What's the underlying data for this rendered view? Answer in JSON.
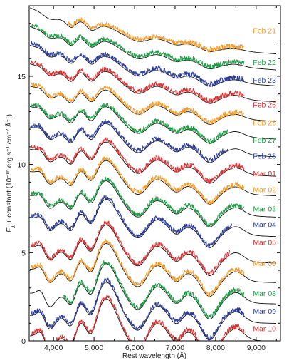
{
  "chart_data": {
    "type": "line",
    "xlabel": "Rest wavelength (Å)",
    "ylabel_parts": {
      "f": "F",
      "sub": "λ",
      "mid": " + constant (10",
      "exp1": "−16",
      "mid2": " erg s",
      "exp2": "−1",
      "mid3": " cm",
      "exp3": "−2",
      "mid4": " Å",
      "exp4": "−1",
      "end": ")"
    },
    "xlim": [
      3400,
      9600
    ],
    "ylim": [
      0,
      19.0
    ],
    "x_ticks": [
      4000,
      5000,
      6000,
      7000,
      8000,
      9000
    ],
    "x_tick_labels": [
      "4,000",
      "5,000",
      "6,000",
      "7,000",
      "8,000",
      "9,000"
    ],
    "y_ticks": [
      0,
      5,
      10,
      15
    ],
    "y_tick_labels": [
      "0",
      "5",
      "10",
      "15"
    ],
    "grid": false,
    "legend": "none",
    "series": [
      {
        "name": "Feb 21",
        "color": "#f39a2a",
        "offset": 16.4,
        "x_start": 4350,
        "x_end": 8700,
        "seed": 1,
        "label_y": 17.6
      },
      {
        "name": "Feb 22",
        "color": "#1f9a45",
        "offset": 15.5,
        "x_start": 3450,
        "x_end": 8700,
        "seed": 2,
        "label_y": 15.8
      },
      {
        "name": "Feb 23",
        "color": "#2b3d97",
        "offset": 14.6,
        "x_start": 3450,
        "x_end": 8700,
        "seed": 3,
        "label_y": 14.8
      },
      {
        "name": "Feb 25",
        "color": "#d93232",
        "offset": 13.7,
        "x_start": 3450,
        "x_end": 8700,
        "seed": 4,
        "label_y": 13.4
      },
      {
        "name": "Feb 26",
        "color": "#f39a2a",
        "offset": 12.6,
        "x_start": 3450,
        "x_end": 8700,
        "seed": 5,
        "label_y": 12.4
      },
      {
        "name": "Feb 27",
        "color": "#1f9a45",
        "offset": 11.6,
        "x_start": 3450,
        "x_end": 8300,
        "seed": 6,
        "label_y": 11.4
      },
      {
        "name": "Feb 28",
        "color": "#2b3d97",
        "offset": 10.6,
        "x_start": 3450,
        "x_end": 8300,
        "seed": 7,
        "label_y": 10.5
      },
      {
        "name": "Mar 01",
        "color": "#d93232",
        "offset": 9.5,
        "x_start": 3450,
        "x_end": 8700,
        "seed": 8,
        "label_y": 9.5
      },
      {
        "name": "Mar 02",
        "color": "#f39a2a",
        "offset": 8.4,
        "x_start": 3450,
        "x_end": 8700,
        "seed": 9,
        "label_y": 8.6
      },
      {
        "name": "Mar 03",
        "color": "#1f9a45",
        "offset": 7.2,
        "x_start": 3450,
        "x_end": 8700,
        "seed": 10,
        "label_y": 7.5
      },
      {
        "name": "Mar 04",
        "color": "#2b3d97",
        "offset": 6.1,
        "x_start": 3450,
        "x_end": 8400,
        "seed": 11,
        "label_y": 6.6
      },
      {
        "name": "Mar 05",
        "color": "#d93232",
        "offset": 4.6,
        "x_start": 3450,
        "x_end": 8350,
        "seed": 12,
        "label_y": 5.6
      },
      {
        "name": "Mar 06",
        "color": "#f39a2a",
        "offset": 3.5,
        "x_start": 3450,
        "x_end": 8700,
        "seed": 13,
        "label_y": 4.4
      },
      {
        "name": "Mar 08",
        "color": "#1f9a45",
        "offset": 2.3,
        "x_start": 4250,
        "x_end": 8700,
        "seed": 14,
        "label_y": 2.7
      },
      {
        "name": "Mar 09",
        "color": "#2b3d97",
        "offset": 1.2,
        "x_start": 3450,
        "x_end": 8700,
        "seed": 15,
        "label_y": 1.7
      },
      {
        "name": "Mar 10",
        "color": "#d93232",
        "offset": 0.2,
        "x_start": 3450,
        "x_end": 8700,
        "seed": 16,
        "label_y": 0.7
      }
    ]
  }
}
